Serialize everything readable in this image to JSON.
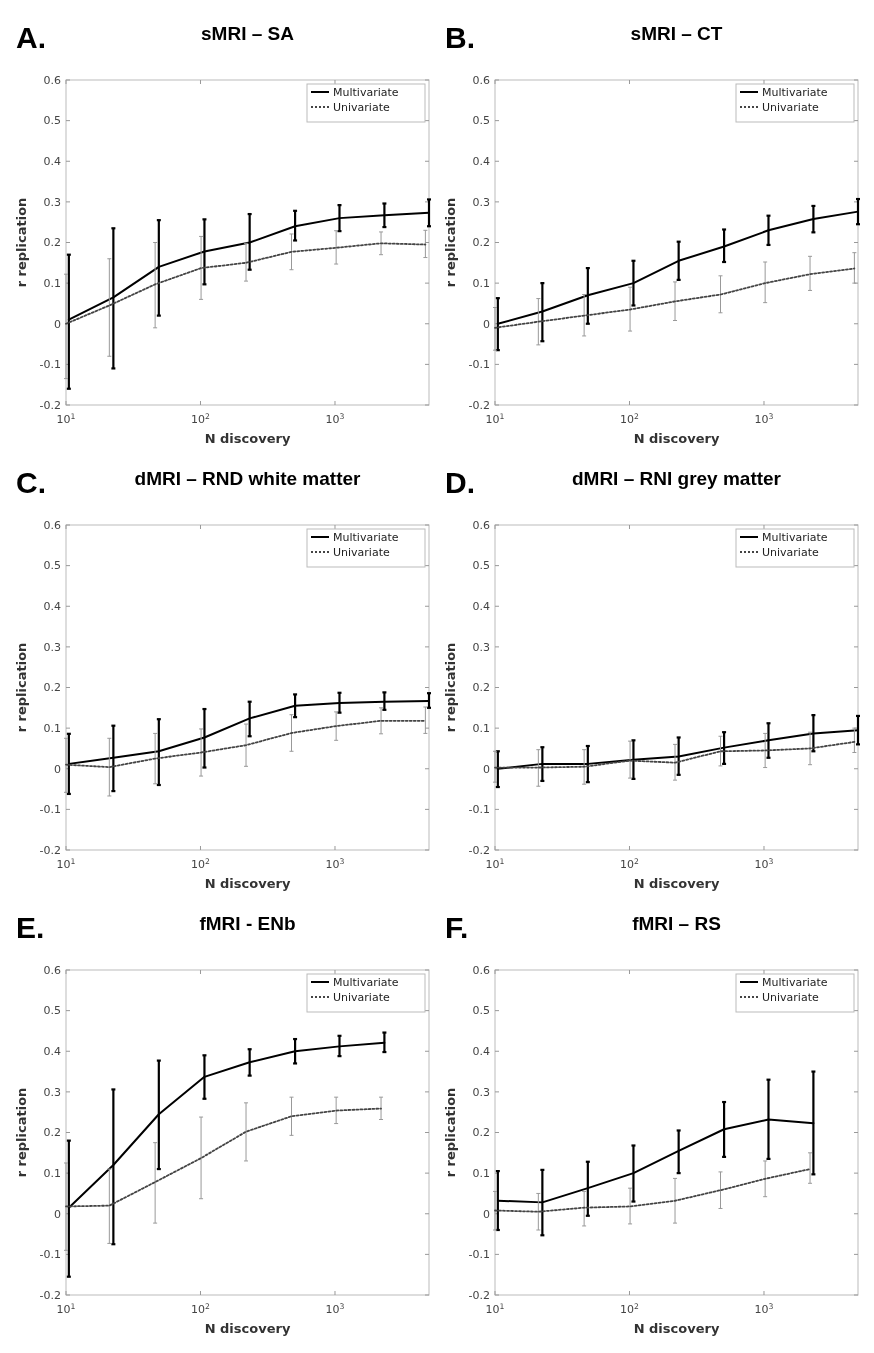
{
  "chart_data": [
    {
      "type": "line",
      "title": "sMRI – SA",
      "annotations": [
        "A."
      ],
      "xlabel": "N discovery",
      "ylabel": "r replication",
      "log": "x",
      "legend": "top right",
      "xlim": [
        10,
        5000
      ],
      "ylim": [
        -0.2,
        0.6
      ],
      "xticks": [
        {
          "value": 10,
          "label": "10$^{1}$"
        },
        {
          "value": 100,
          "label": "10$^{2}$"
        },
        {
          "value": 1000,
          "label": "10$^{3}$"
        }
      ],
      "yticks": [
        -0.2,
        -0.1,
        0,
        0.1,
        0.2,
        0.3,
        0.4,
        0.5,
        0.6
      ],
      "series": [
        {
          "name": "Multivariate",
          "color": "#000000",
          "line_style": "solid",
          "x": [
            10.5,
            22.5,
            49,
            107,
            232,
            505,
            1080,
            2330,
            5000
          ],
          "values": [
            0.01,
            0.065,
            0.14,
            0.178,
            0.2,
            0.24,
            0.26,
            0.267,
            0.273
          ],
          "errors": [
            [
              -0.16,
              0.17
            ],
            [
              -0.11,
              0.235
            ],
            [
              0.02,
              0.255
            ],
            [
              0.097,
              0.257
            ],
            [
              0.133,
              0.27
            ],
            [
              0.205,
              0.278
            ],
            [
              0.228,
              0.292
            ],
            [
              0.238,
              0.296
            ],
            [
              0.24,
              0.306
            ]
          ]
        },
        {
          "name": "Univariate",
          "color": "#444444",
          "line_style": "dotted",
          "x": [
            10,
            21,
            46,
            101,
            218,
            475,
            1020,
            2200,
            4700
          ],
          "values": [
            0,
            0.045,
            0.097,
            0.137,
            0.15,
            0.177,
            0.187,
            0.198,
            0.195
          ],
          "errors": [
            [
              -0.135,
              0.122
            ],
            [
              -0.08,
              0.16
            ],
            [
              -0.01,
              0.2
            ],
            [
              0.06,
              0.215
            ],
            [
              0.105,
              0.198
            ],
            [
              0.133,
              0.221
            ],
            [
              0.147,
              0.229
            ],
            [
              0.17,
              0.226
            ],
            [
              0.163,
              0.23
            ]
          ]
        }
      ]
    },
    {
      "type": "line",
      "title": "sMRI – CT",
      "annotations": [
        "B."
      ],
      "xlabel": "N discovery",
      "ylabel": "r replication",
      "log": "x",
      "legend": "top right",
      "xlim": [
        10,
        5000
      ],
      "ylim": [
        -0.2,
        0.6
      ],
      "xticks": [
        {
          "value": 10,
          "label": "10$^{1}$"
        },
        {
          "value": 100,
          "label": "10$^{2}$"
        },
        {
          "value": 1000,
          "label": "10$^{3}$"
        }
      ],
      "yticks": [
        -0.2,
        -0.1,
        0,
        0.1,
        0.2,
        0.3,
        0.4,
        0.5,
        0.6
      ],
      "series": [
        {
          "name": "Multivariate",
          "color": "#000000",
          "line_style": "solid",
          "x": [
            10.5,
            22.5,
            49,
            107,
            232,
            505,
            1080,
            2330,
            5000
          ],
          "values": [
            0,
            0.03,
            0.07,
            0.1,
            0.155,
            0.19,
            0.23,
            0.258,
            0.276
          ],
          "errors": [
            [
              -0.065,
              0.063
            ],
            [
              -0.043,
              0.1
            ],
            [
              0,
              0.137
            ],
            [
              0.045,
              0.155
            ],
            [
              0.108,
              0.202
            ],
            [
              0.152,
              0.232
            ],
            [
              0.194,
              0.266
            ],
            [
              0.225,
              0.29
            ],
            [
              0.245,
              0.307
            ]
          ]
        },
        {
          "name": "Univariate",
          "color": "#444444",
          "line_style": "dotted",
          "x": [
            10,
            21,
            46,
            101,
            218,
            475,
            1020,
            2200,
            4700
          ],
          "values": [
            -0.01,
            0.005,
            0.02,
            0.035,
            0.055,
            0.072,
            0.1,
            0.122,
            0.136
          ],
          "errors": [
            [
              -0.065,
              0.04
            ],
            [
              -0.052,
              0.062
            ],
            [
              -0.03,
              0.072
            ],
            [
              -0.018,
              0.09
            ],
            [
              0.008,
              0.103
            ],
            [
              0.027,
              0.118
            ],
            [
              0.052,
              0.152
            ],
            [
              0.082,
              0.166
            ],
            [
              0.1,
              0.175
            ]
          ]
        }
      ]
    },
    {
      "type": "line",
      "title": "dMRI – RND white matter",
      "annotations": [
        "C."
      ],
      "xlabel": "N discovery",
      "ylabel": "r replication",
      "log": "x",
      "legend": "top right",
      "xlim": [
        10,
        5000
      ],
      "ylim": [
        -0.2,
        0.6
      ],
      "xticks": [
        {
          "value": 10,
          "label": "10$^{1}$"
        },
        {
          "value": 100,
          "label": "10$^{2}$"
        },
        {
          "value": 1000,
          "label": "10$^{3}$"
        }
      ],
      "yticks": [
        -0.2,
        -0.1,
        0,
        0.1,
        0.2,
        0.3,
        0.4,
        0.5,
        0.6
      ],
      "series": [
        {
          "name": "Multivariate",
          "color": "#000000",
          "line_style": "solid",
          "x": [
            10.5,
            22.5,
            49,
            107,
            232,
            505,
            1080,
            2330,
            5000
          ],
          "values": [
            0.012,
            0.027,
            0.043,
            0.077,
            0.124,
            0.155,
            0.162,
            0.165,
            0.167
          ],
          "errors": [
            [
              -0.062,
              0.086
            ],
            [
              -0.055,
              0.106
            ],
            [
              -0.04,
              0.122
            ],
            [
              0.003,
              0.147
            ],
            [
              0.08,
              0.165
            ],
            [
              0.127,
              0.183
            ],
            [
              0.138,
              0.187
            ],
            [
              0.145,
              0.188
            ],
            [
              0.15,
              0.186
            ]
          ]
        },
        {
          "name": "Univariate",
          "color": "#444444",
          "line_style": "dotted",
          "x": [
            10,
            21,
            46,
            101,
            218,
            475,
            1020,
            2200,
            4700
          ],
          "values": [
            0.01,
            0.004,
            0.025,
            0.04,
            0.058,
            0.088,
            0.105,
            0.118,
            0.118
          ],
          "errors": [
            [
              -0.058,
              0.075
            ],
            [
              -0.067,
              0.075
            ],
            [
              -0.037,
              0.087
            ],
            [
              -0.018,
              0.098
            ],
            [
              0.006,
              0.11
            ],
            [
              0.043,
              0.133
            ],
            [
              0.07,
              0.14
            ],
            [
              0.086,
              0.15
            ],
            [
              0.087,
              0.152
            ]
          ]
        }
      ]
    },
    {
      "type": "line",
      "title": "dMRI – RNI grey matter",
      "annotations": [
        "D."
      ],
      "xlabel": "N discovery",
      "ylabel": "r replication",
      "log": "x",
      "legend": "top right",
      "xlim": [
        10,
        5000
      ],
      "ylim": [
        -0.2,
        0.6
      ],
      "xticks": [
        {
          "value": 10,
          "label": "10$^{1}$"
        },
        {
          "value": 100,
          "label": "10$^{2}$"
        },
        {
          "value": 1000,
          "label": "10$^{3}$"
        }
      ],
      "yticks": [
        -0.2,
        -0.1,
        0,
        0.1,
        0.2,
        0.3,
        0.4,
        0.5,
        0.6
      ],
      "series": [
        {
          "name": "Multivariate",
          "color": "#000000",
          "line_style": "solid",
          "x": [
            10.5,
            22.5,
            49,
            107,
            232,
            505,
            1080,
            2330,
            5000
          ],
          "values": [
            0,
            0.012,
            0.012,
            0.022,
            0.03,
            0.052,
            0.07,
            0.087,
            0.095
          ],
          "errors": [
            [
              -0.045,
              0.043
            ],
            [
              -0.03,
              0.053
            ],
            [
              -0.033,
              0.056
            ],
            [
              -0.025,
              0.07
            ],
            [
              -0.015,
              0.077
            ],
            [
              0.012,
              0.09
            ],
            [
              0.027,
              0.112
            ],
            [
              0.043,
              0.132
            ],
            [
              0.06,
              0.13
            ]
          ]
        },
        {
          "name": "Univariate",
          "color": "#444444",
          "line_style": "dotted",
          "x": [
            10,
            21,
            46,
            101,
            218,
            475,
            1020,
            2200,
            4700
          ],
          "values": [
            0.003,
            0.003,
            0.005,
            0.02,
            0.015,
            0.043,
            0.045,
            0.05,
            0.066
          ],
          "errors": [
            [
              -0.033,
              0.043
            ],
            [
              -0.043,
              0.047
            ],
            [
              -0.038,
              0.047
            ],
            [
              -0.023,
              0.068
            ],
            [
              -0.028,
              0.06
            ],
            [
              0.007,
              0.08
            ],
            [
              0.003,
              0.087
            ],
            [
              0.01,
              0.09
            ],
            [
              0.04,
              0.1
            ]
          ]
        }
      ]
    },
    {
      "type": "line",
      "title": "fMRI - ENb",
      "annotations": [
        "E."
      ],
      "xlabel": "N discovery",
      "ylabel": "r replication",
      "log": "x",
      "legend": "top right",
      "xlim": [
        10,
        5000
      ],
      "ylim": [
        -0.2,
        0.6
      ],
      "xticks": [
        {
          "value": 10,
          "label": "10$^{1}$"
        },
        {
          "value": 100,
          "label": "10$^{2}$"
        },
        {
          "value": 1000,
          "label": "10$^{3}$"
        }
      ],
      "yticks": [
        -0.2,
        -0.1,
        0,
        0.1,
        0.2,
        0.3,
        0.4,
        0.5,
        0.6
      ],
      "series": [
        {
          "name": "Multivariate",
          "color": "#000000",
          "line_style": "solid",
          "x": [
            10.5,
            22.5,
            49,
            107,
            232,
            505,
            1080,
            2330
          ],
          "values": [
            0.015,
            0.12,
            0.245,
            0.337,
            0.373,
            0.4,
            0.412,
            0.421
          ],
          "errors": [
            [
              -0.155,
              0.18
            ],
            [
              -0.075,
              0.306
            ],
            [
              0.11,
              0.377
            ],
            [
              0.283,
              0.39
            ],
            [
              0.34,
              0.405
            ],
            [
              0.37,
              0.43
            ],
            [
              0.388,
              0.438
            ],
            [
              0.398,
              0.446
            ]
          ]
        },
        {
          "name": "Univariate",
          "color": "#444444",
          "line_style": "dotted",
          "x": [
            10,
            21,
            46,
            101,
            218,
            475,
            1020,
            2200
          ],
          "values": [
            0.018,
            0.02,
            0.078,
            0.137,
            0.202,
            0.24,
            0.254,
            0.259
          ],
          "errors": [
            [
              -0.09,
              0.125
            ],
            [
              -0.073,
              0.11
            ],
            [
              -0.023,
              0.175
            ],
            [
              0.037,
              0.238
            ],
            [
              0.13,
              0.273
            ],
            [
              0.193,
              0.287
            ],
            [
              0.222,
              0.287
            ],
            [
              0.232,
              0.287
            ]
          ]
        }
      ]
    },
    {
      "type": "line",
      "title": "fMRI – RS",
      "annotations": [
        "F."
      ],
      "xlabel": "N discovery",
      "ylabel": "r replication",
      "log": "x",
      "legend": "top right",
      "xlim": [
        10,
        5000
      ],
      "ylim": [
        -0.2,
        0.6
      ],
      "xticks": [
        {
          "value": 10,
          "label": "10$^{1}$"
        },
        {
          "value": 100,
          "label": "10$^{2}$"
        },
        {
          "value": 1000,
          "label": "10$^{3}$"
        }
      ],
      "yticks": [
        -0.2,
        -0.1,
        0,
        0.1,
        0.2,
        0.3,
        0.4,
        0.5,
        0.6
      ],
      "series": [
        {
          "name": "Multivariate",
          "color": "#000000",
          "line_style": "solid",
          "x": [
            10.5,
            22.5,
            49,
            107,
            232,
            505,
            1080,
            2330
          ],
          "values": [
            0.032,
            0.028,
            0.063,
            0.1,
            0.155,
            0.208,
            0.232,
            0.223
          ],
          "errors": [
            [
              -0.04,
              0.105
            ],
            [
              -0.053,
              0.108
            ],
            [
              -0.005,
              0.128
            ],
            [
              0.03,
              0.168
            ],
            [
              0.1,
              0.205
            ],
            [
              0.14,
              0.275
            ],
            [
              0.135,
              0.33
            ],
            [
              0.097,
              0.35
            ]
          ]
        },
        {
          "name": "Univariate",
          "color": "#444444",
          "line_style": "dotted",
          "x": [
            10,
            21,
            46,
            101,
            218,
            475,
            1020,
            2200
          ],
          "values": [
            0.008,
            0.005,
            0.015,
            0.018,
            0.032,
            0.058,
            0.086,
            0.11
          ],
          "errors": [
            [
              -0.04,
              0.055
            ],
            [
              -0.04,
              0.05
            ],
            [
              -0.03,
              0.055
            ],
            [
              -0.025,
              0.063
            ],
            [
              -0.023,
              0.087
            ],
            [
              0.013,
              0.103
            ],
            [
              0.042,
              0.13
            ],
            [
              0.075,
              0.15
            ]
          ]
        }
      ]
    }
  ]
}
